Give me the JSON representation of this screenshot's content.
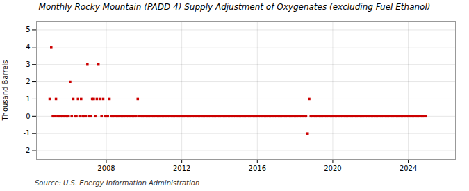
{
  "chart_data": {
    "type": "scatter",
    "title": "Monthly Rocky Mountain (PADD 4) Supply Adjustment of Oxygenates (excluding Fuel Ethanol)",
    "ylabel": "Thousand Barrels",
    "annotations": [
      "Source: U.S. Energy Information Administration"
    ],
    "color": "#cc0000",
    "marker": "square",
    "grid": true,
    "xlim": [
      2004.3,
      2026.5
    ],
    "xticks": [
      2008,
      2012,
      2016,
      2020,
      2024
    ],
    "ylim": [
      -2.5,
      5.5
    ],
    "yticks": [
      -2,
      -1,
      0,
      1,
      2,
      3,
      4,
      5
    ],
    "x": [
      2005,
      2005.0833333333,
      2005.1666666667,
      2005.25,
      2005.3333333333,
      2005.4166666667,
      2005.5,
      2005.5833333333,
      2005.6666666667,
      2005.75,
      2005.8333333333,
      2005.9166666667,
      2006,
      2006.0833333333,
      2006.1666666667,
      2006.25,
      2006.3333333333,
      2006.4166666667,
      2006.5,
      2006.5833333333,
      2006.6666666667,
      2006.75,
      2006.8333333333,
      2006.9166666667,
      2007,
      2007.0833333333,
      2007.1666666667,
      2007.25,
      2007.3333333333,
      2007.4166666667,
      2007.5,
      2007.5833333333,
      2007.6666666667,
      2007.75,
      2007.8333333333,
      2007.9166666667,
      2008,
      2008.0833333333,
      2008.1666666667,
      2008.25,
      2008.3333333333,
      2008.4166666667,
      2008.5,
      2008.5833333333,
      2008.6666666667,
      2008.75,
      2008.8333333333,
      2008.9166666667,
      2009,
      2009.0833333333,
      2009.1666666667,
      2009.25,
      2009.3333333333,
      2009.4166666667,
      2009.5,
      2009.5833333333,
      2009.6666666667,
      2009.75,
      2009.8333333333,
      2009.9166666667,
      2010,
      2010.0833333333,
      2010.1666666667,
      2010.25,
      2010.3333333333,
      2010.4166666667,
      2010.5,
      2010.5833333333,
      2010.6666666667,
      2010.75,
      2010.8333333333,
      2010.9166666667,
      2011,
      2011.0833333333,
      2011.1666666667,
      2011.25,
      2011.3333333333,
      2011.4166666667,
      2011.5,
      2011.5833333333,
      2011.6666666667,
      2011.75,
      2011.8333333333,
      2011.9166666667,
      2012,
      2012.0833333333,
      2012.1666666667,
      2012.25,
      2012.3333333333,
      2012.4166666667,
      2012.5,
      2012.5833333333,
      2012.6666666667,
      2012.75,
      2012.8333333333,
      2012.9166666667,
      2013,
      2013.0833333333,
      2013.1666666667,
      2013.25,
      2013.3333333333,
      2013.4166666667,
      2013.5,
      2013.5833333333,
      2013.6666666667,
      2013.75,
      2013.8333333333,
      2013.9166666667,
      2014,
      2014.0833333333,
      2014.1666666667,
      2014.25,
      2014.3333333333,
      2014.4166666667,
      2014.5,
      2014.5833333333,
      2014.6666666667,
      2014.75,
      2014.8333333333,
      2014.9166666667,
      2015,
      2015.0833333333,
      2015.1666666667,
      2015.25,
      2015.3333333333,
      2015.4166666667,
      2015.5,
      2015.5833333333,
      2015.6666666667,
      2015.75,
      2015.8333333333,
      2015.9166666667,
      2016,
      2016.0833333333,
      2016.1666666667,
      2016.25,
      2016.3333333333,
      2016.4166666667,
      2016.5,
      2016.5833333333,
      2016.6666666667,
      2016.75,
      2016.8333333333,
      2016.9166666667,
      2017,
      2017.0833333333,
      2017.1666666667,
      2017.25,
      2017.3333333333,
      2017.4166666667,
      2017.5,
      2017.5833333333,
      2017.6666666667,
      2017.75,
      2017.8333333333,
      2017.9166666667,
      2018,
      2018.0833333333,
      2018.1666666667,
      2018.25,
      2018.3333333333,
      2018.4166666667,
      2018.5,
      2018.5833333333,
      2018.6666666667,
      2018.75,
      2018.8333333333,
      2018.9166666667,
      2019,
      2019.0833333333,
      2019.1666666667,
      2019.25,
      2019.3333333333,
      2019.4166666667,
      2019.5,
      2019.5833333333,
      2019.6666666667,
      2019.75,
      2019.8333333333,
      2019.9166666667,
      2020,
      2020.0833333333,
      2020.1666666667,
      2020.25,
      2020.3333333333,
      2020.4166666667,
      2020.5,
      2020.5833333333,
      2020.6666666667,
      2020.75,
      2020.8333333333,
      2020.9166666667,
      2021,
      2021.0833333333,
      2021.1666666667,
      2021.25,
      2021.3333333333,
      2021.4166666667,
      2021.5,
      2021.5833333333,
      2021.6666666667,
      2021.75,
      2021.8333333333,
      2021.9166666667,
      2022,
      2022.0833333333,
      2022.1666666667,
      2022.25,
      2022.3333333333,
      2022.4166666667,
      2022.5,
      2022.5833333333,
      2022.6666666667,
      2022.75,
      2022.8333333333,
      2022.9166666667,
      2023,
      2023.0833333333,
      2023.1666666667,
      2023.25,
      2023.3333333333,
      2023.4166666667,
      2023.5,
      2023.5833333333,
      2023.6666666667,
      2023.75,
      2023.8333333333,
      2023.9166666667,
      2024,
      2024.0833333333,
      2024.1666666667,
      2024.25,
      2024.3333333333,
      2024.4166666667,
      2024.5,
      2024.5833333333,
      2024.6666666667,
      2024.75,
      2024.8333333333,
      2024.9166666667
    ],
    "values": [
      1,
      4,
      0,
      0,
      1,
      0,
      0,
      0,
      0,
      0,
      0,
      0,
      0,
      2,
      0,
      1,
      0,
      0,
      1,
      0,
      1,
      0,
      0,
      0,
      3,
      0,
      0,
      1,
      1,
      0,
      1,
      3,
      1,
      0,
      1,
      0,
      0,
      0,
      1,
      0,
      0,
      0,
      0,
      0,
      0,
      0,
      0,
      0,
      0,
      0,
      0,
      0,
      0,
      0,
      0,
      0,
      1,
      0,
      0,
      0,
      0,
      0,
      0,
      0,
      0,
      0,
      0,
      0,
      0,
      0,
      0,
      0,
      0,
      0,
      0,
      0,
      0,
      0,
      0,
      0,
      0,
      0,
      0,
      0,
      0,
      0,
      0,
      0,
      0,
      0,
      0,
      0,
      0,
      0,
      0,
      0,
      0,
      0,
      0,
      0,
      0,
      0,
      0,
      0,
      0,
      0,
      0,
      0,
      0,
      0,
      0,
      0,
      0,
      0,
      0,
      0,
      0,
      0,
      0,
      0,
      0,
      0,
      0,
      0,
      0,
      0,
      0,
      0,
      0,
      0,
      0,
      0,
      0,
      0,
      0,
      0,
      0,
      0,
      0,
      0,
      0,
      0,
      0,
      0,
      0,
      0,
      0,
      0,
      0,
      0,
      0,
      0,
      0,
      0,
      0,
      0,
      0,
      0,
      0,
      0,
      0,
      0,
      0,
      0,
      -1,
      1,
      0,
      0,
      0,
      0,
      0,
      0,
      0,
      0,
      0,
      0,
      0,
      0,
      0,
      0,
      0,
      0,
      0,
      0,
      0,
      0,
      0,
      0,
      0,
      0,
      0,
      0,
      0,
      0,
      0,
      0,
      0,
      0,
      0,
      0,
      0,
      0,
      0,
      0,
      0,
      0,
      0,
      0,
      0,
      0,
      0,
      0,
      0,
      0,
      0,
      0,
      0,
      0,
      0,
      0,
      0,
      0,
      0,
      0,
      0,
      0,
      0,
      0,
      0,
      0,
      0,
      0,
      0,
      0,
      0,
      0,
      0,
      0,
      0,
      0
    ]
  }
}
